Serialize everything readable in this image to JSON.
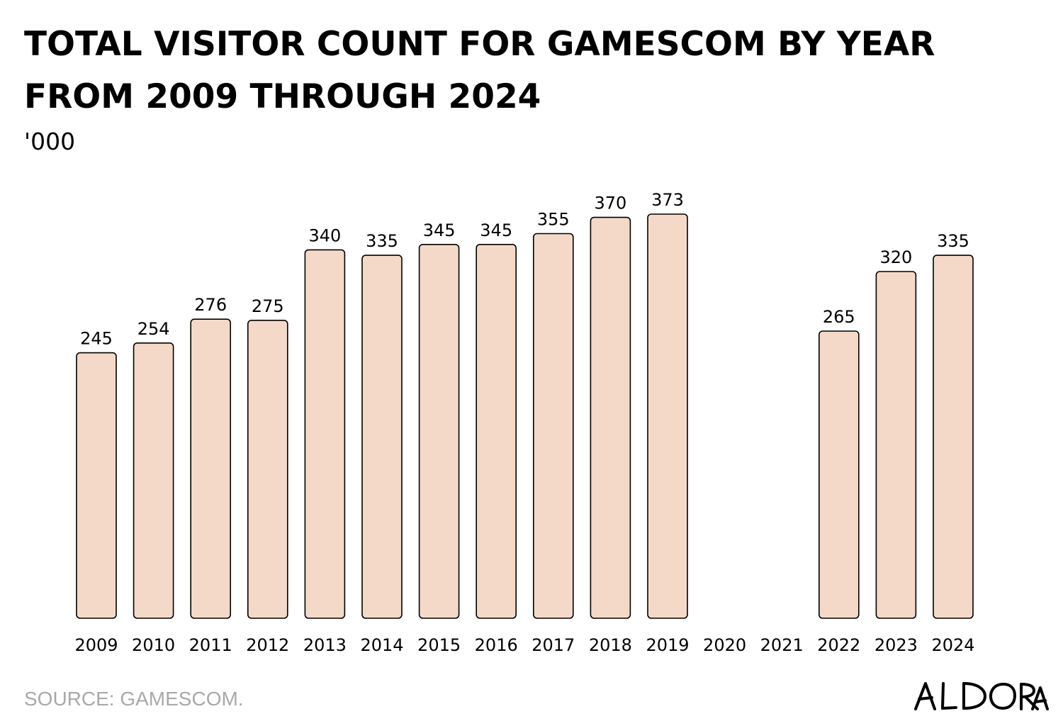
{
  "chart_data": {
    "type": "bar",
    "title": "TOTAL VISITOR COUNT FOR GAMESCOM BY YEAR FROM 2009 THROUGH 2024",
    "unit_label": "'000",
    "categories": [
      "2009",
      "2010",
      "2011",
      "2012",
      "2013",
      "2014",
      "2015",
      "2016",
      "2017",
      "2018",
      "2019",
      "2020",
      "2021",
      "2022",
      "2023",
      "2024"
    ],
    "values": [
      245,
      254,
      276,
      275,
      340,
      335,
      345,
      345,
      355,
      370,
      373,
      null,
      null,
      265,
      320,
      335
    ],
    "data_labels": [
      "245",
      "254",
      "276",
      "275",
      "340",
      "335",
      "345",
      "345",
      "355",
      "370",
      "373",
      "",
      "",
      "265",
      "320",
      "335"
    ],
    "ylim": [
      0,
      373
    ],
    "grid": false,
    "legend": "none",
    "bar_color": "#f5d9c8",
    "bar_stroke": "#000000"
  },
  "footer": {
    "source": "SOURCE: GAMESCOM.",
    "logo": "ALDORA"
  }
}
